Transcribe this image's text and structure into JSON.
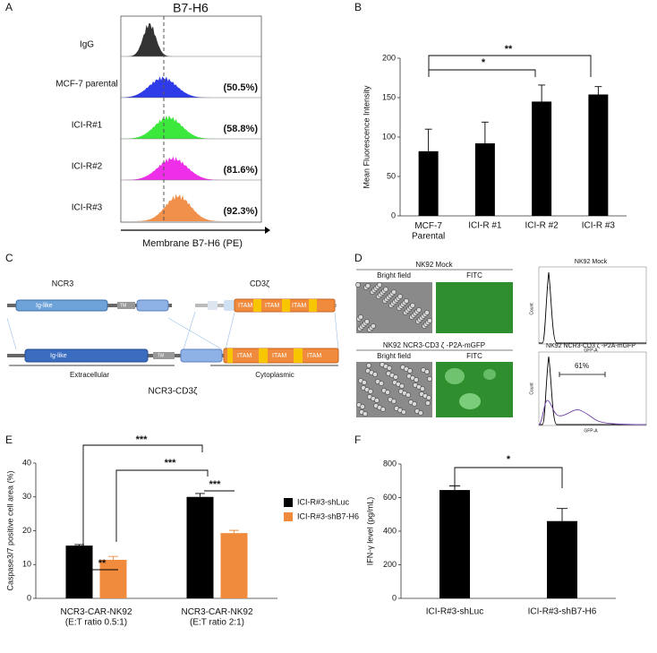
{
  "panel_labels": [
    "A",
    "B",
    "C",
    "D",
    "E",
    "F"
  ],
  "panel_a": {
    "title": "B7-H6",
    "rows": [
      {
        "label": "IgG"
      },
      {
        "label": "MCF-7 parental",
        "percent": "(50.5%)"
      },
      {
        "label": "ICI-R#1",
        "percent": "(58.8%)"
      },
      {
        "label": "ICI-R#2",
        "percent": "(81.6%)"
      },
      {
        "label": "ICI-R#3",
        "percent": "(92.3%)"
      }
    ],
    "x_label": "Membrane B7-H6 (PE)"
  },
  "panel_c": {
    "ncr3": {
      "name": "NCR3",
      "domains": [
        "Ig-like",
        "TM"
      ]
    },
    "cd3z": {
      "name": "CD3ζ",
      "domains": [
        "ITAM",
        "ITAM",
        "ITAM"
      ]
    },
    "fusion": {
      "domains": [
        "Ig-like",
        "TM",
        "ITAM",
        "ITAM",
        "ITAM"
      ],
      "regions": [
        "Extracellular",
        "Cytoplasmic"
      ],
      "name": "NCR3-CD3ζ"
    }
  },
  "panel_d": {
    "rows": [
      {
        "title": "NK92 Mock",
        "images": [
          "Bright field",
          "FITC"
        ],
        "histogram_title": "NK92 Mock"
      },
      {
        "title": "NK92 NCR3-CD3 ζ -P2A-mGFP",
        "images": [
          "Bright field",
          "FITC"
        ],
        "histogram_title": "NK92 NCR3-CD3 ζ -P2A-mGFP",
        "gate": "61%"
      }
    ],
    "y_label": "Count",
    "x_label": "GFP-A"
  },
  "chart_data": [
    {
      "type": "bar",
      "y_label": "Mean Fluorescence Intensity",
      "categories": [
        "MCF-7\nParental",
        "ICI-R #1",
        "ICI-R #2",
        "ICI-R #3"
      ],
      "series": [
        {
          "color": "#000000",
          "values": [
            82,
            92,
            145,
            154
          ],
          "errors": [
            28,
            27,
            21,
            10
          ]
        }
      ],
      "ylim": [
        0,
        200
      ],
      "yticks": [
        0,
        50,
        100,
        150,
        200
      ],
      "annotations": [
        "*",
        "**"
      ]
    },
    {
      "type": "bar",
      "y_label": "Caspase3/7 positive cell area (%)",
      "categories": [
        "NCR3-CAR-NK92\n(E:T ratio 0.5:1)",
        "NCR3-CAR-NK92\n(E:T ratio 2:1)"
      ],
      "series": [
        {
          "name": "ICI-R#3-shLuc",
          "color": "#000000",
          "values": [
            15.6,
            30
          ],
          "errors": [
            0.3,
            1.0
          ]
        },
        {
          "name": "ICI-R#3-shB7-H6",
          "color": "#f08a3c",
          "values": [
            11.4,
            19.3
          ],
          "errors": [
            1.0,
            0.8
          ]
        }
      ],
      "ylim": [
        0,
        40
      ],
      "yticks": [
        0,
        10,
        20,
        30,
        40
      ],
      "legend": "right",
      "annotations": [
        "**",
        "***",
        "***",
        "***"
      ]
    },
    {
      "type": "bar",
      "y_label": "IFN-γ level (pg/mL)",
      "categories": [
        "ICI-R#3-shLuc",
        "ICI-R#3-shB7-H6"
      ],
      "series": [
        {
          "color": "#000000",
          "values": [
            645,
            460
          ],
          "errors": [
            25,
            75
          ]
        }
      ],
      "ylim": [
        0,
        800
      ],
      "yticks": [
        0,
        200,
        400,
        600,
        800
      ],
      "annotations": [
        "*"
      ]
    }
  ]
}
